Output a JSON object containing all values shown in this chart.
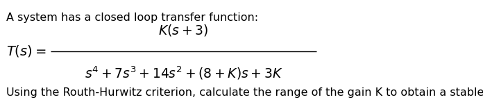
{
  "line1": "A system has a closed loop transfer function:",
  "line3": "Using the Routh-Hurwitz criterion, calculate the range of the gain K to obtain a stable system.",
  "ts_prefix": "$\\mathit{T}(s)=$",
  "numerator": "$K(s+3)$",
  "denominator": "$s^4+7s^3+14s^2+(8+K)s+3K$",
  "bg_color": "#ffffff",
  "text_color": "#000000",
  "font_size_body": 11.5,
  "font_size_math": 13.5,
  "font_size_ts": 14.0
}
